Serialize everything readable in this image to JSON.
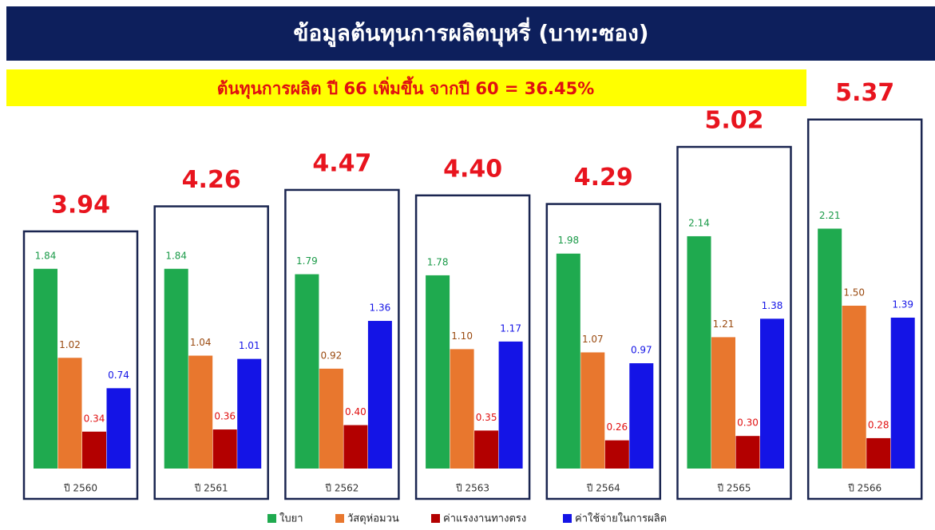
{
  "chart_data": {
    "type": "bar",
    "title": "ข้อมูลต้นทุนการผลิตบุหรี่ (บาท:ซอง)",
    "subtitle": "ต้นทุนการผลิต ปี 66 เพิ่มขึ้น จากปี 60 = 36.45%",
    "categories": [
      "ปี 2560",
      "ปี 2561",
      "ปี 2562",
      "ปี 2563",
      "ปี 2564",
      "ปี 2565",
      "ปี 2566"
    ],
    "series": [
      {
        "name": "ใบยา",
        "color": "#1faa4f",
        "values": [
          1.84,
          1.84,
          1.79,
          1.78,
          1.98,
          2.14,
          2.21
        ],
        "value_labels": [
          "1.84",
          "1.84",
          "1.79",
          "1.78",
          "1.98",
          "2.14",
          "2.21"
        ]
      },
      {
        "name": "วัสดุห่อมวน",
        "color": "#e8772e",
        "values": [
          1.02,
          1.04,
          0.92,
          1.1,
          1.07,
          1.21,
          1.5
        ],
        "value_labels": [
          "1.02",
          "1.04",
          "0.92",
          "1.10",
          "1.07",
          "1.21",
          "1.50"
        ]
      },
      {
        "name": "ค่าแรงงานทางตรง",
        "color": "#b30000",
        "values": [
          0.34,
          0.36,
          0.4,
          0.35,
          0.26,
          0.3,
          0.28
        ],
        "value_labels": [
          "0.34",
          "0.36",
          "0.40",
          "0.35",
          "0.26",
          "0.30",
          "0.28"
        ]
      },
      {
        "name": "ค่าใช้จ่ายในการผลิต",
        "color": "#1414e6",
        "values": [
          0.74,
          1.01,
          1.36,
          1.17,
          0.97,
          1.38,
          1.39
        ],
        "value_labels": [
          "0.74",
          "1.01",
          "1.36",
          "1.17",
          "0.97",
          "1.38",
          "1.39"
        ]
      }
    ],
    "totals": [
      3.94,
      4.26,
      4.47,
      4.4,
      4.29,
      5.02,
      5.37
    ],
    "total_labels": [
      "3.94",
      "4.26",
      "4.47",
      "4.40",
      "4.29",
      "5.02",
      "5.37"
    ]
  }
}
